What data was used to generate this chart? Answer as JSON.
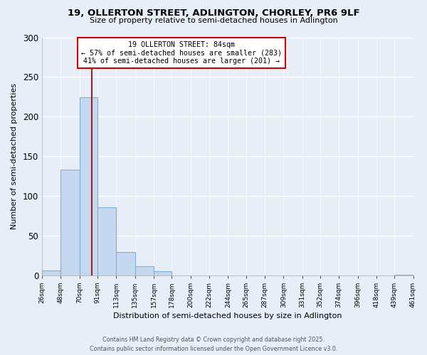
{
  "title": "19, OLLERTON STREET, ADLINGTON, CHORLEY, PR6 9LF",
  "subtitle": "Size of property relative to semi-detached houses in Adlington",
  "xlabel": "Distribution of semi-detached houses by size in Adlington",
  "ylabel": "Number of semi-detached properties",
  "bin_edges": [
    26,
    48,
    70,
    91,
    113,
    135,
    157,
    178,
    200,
    222,
    244,
    265,
    287,
    309,
    331,
    352,
    374,
    396,
    418,
    439,
    461
  ],
  "bin_counts": [
    6,
    133,
    224,
    86,
    29,
    11,
    5,
    0,
    0,
    0,
    0,
    0,
    0,
    0,
    0,
    0,
    0,
    0,
    0,
    1
  ],
  "bar_color": "#c5d8f0",
  "bar_edgecolor": "#7fb0d8",
  "property_size": 84,
  "vline_color": "#9b2020",
  "annotation_title": "19 OLLERTON STREET: 84sqm",
  "annotation_line1": "← 57% of semi-detached houses are smaller (283)",
  "annotation_line2": "41% of semi-detached houses are larger (201) →",
  "annotation_box_edgecolor": "#cc0000",
  "annotation_box_facecolor": "#ffffff",
  "footer_line1": "Contains HM Land Registry data © Crown copyright and database right 2025.",
  "footer_line2": "Contains public sector information licensed under the Open Government Licence v3.0.",
  "ylim": [
    0,
    300
  ],
  "background_color": "#e8eef8",
  "plot_bg_color": "#e8eef8",
  "grid_color": "#ffffff",
  "tick_labels": [
    "26sqm",
    "48sqm",
    "70sqm",
    "91sqm",
    "113sqm",
    "135sqm",
    "157sqm",
    "178sqm",
    "200sqm",
    "222sqm",
    "244sqm",
    "265sqm",
    "287sqm",
    "309sqm",
    "331sqm",
    "352sqm",
    "374sqm",
    "396sqm",
    "418sqm",
    "439sqm",
    "461sqm"
  ]
}
